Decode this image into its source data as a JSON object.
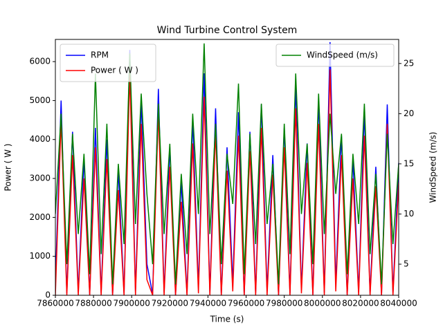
{
  "chart_data": {
    "type": "line",
    "title": "Wind Turbine Control System",
    "xlabel": "Time (s)",
    "ylabel": "Power   ( W )",
    "y2label": "WindSpeed (m/s)",
    "x": [
      7860000,
      7863000,
      7866000,
      7869000,
      7872000,
      7875000,
      7878000,
      7881000,
      7884000,
      7887000,
      7890000,
      7893000,
      7896000,
      7899000,
      7902000,
      7905000,
      7908000,
      7911000,
      7914000,
      7917000,
      7920000,
      7923000,
      7926000,
      7929000,
      7932000,
      7935000,
      7938000,
      7941000,
      7944000,
      7947000,
      7950000,
      7953000,
      7956000,
      7959000,
      7962000,
      7965000,
      7968000,
      7971000,
      7974000,
      7977000,
      7980000,
      7983000,
      7986000,
      7989000,
      7992000,
      7995000,
      7998000,
      8001000,
      8004000,
      8007000,
      8010000,
      8013000,
      8016000,
      8019000,
      8022000,
      8025000,
      8028000,
      8031000,
      8034000,
      8037000,
      8040000
    ],
    "series": [
      {
        "name": "RPM",
        "color": "#0000ff",
        "values": [
          300,
          5000,
          50,
          4200,
          80,
          3500,
          20,
          4300,
          60,
          4000,
          10,
          3200,
          40,
          6300,
          90,
          5000,
          800,
          30,
          5300,
          70,
          3800,
          10,
          2900,
          40,
          4500,
          200,
          5700,
          60,
          4800,
          20,
          3800,
          300,
          4700,
          10,
          4200,
          60,
          4900,
          100,
          3600,
          10,
          4300,
          50,
          5400,
          150,
          3900,
          30,
          5000,
          70,
          6500,
          300,
          4100,
          20,
          3500,
          80,
          4700,
          40,
          3300,
          10,
          4900,
          60,
          3400
        ]
      },
      {
        "name": "Power   ( W )",
        "color": "#ff0000",
        "values": [
          0,
          4500,
          0,
          3600,
          0,
          3000,
          0,
          3800,
          0,
          3500,
          0,
          2700,
          0,
          5700,
          0,
          4400,
          400,
          0,
          4700,
          0,
          3300,
          0,
          2400,
          0,
          3900,
          50,
          5100,
          0,
          4200,
          0,
          3200,
          100,
          4100,
          0,
          3700,
          0,
          4300,
          0,
          3100,
          0,
          3800,
          0,
          4800,
          50,
          3400,
          0,
          4400,
          0,
          5800,
          100,
          3600,
          0,
          3000,
          0,
          4100,
          0,
          2800,
          0,
          4400,
          0,
          2900
        ]
      },
      {
        "name": "WindSpeed (m/s)",
        "color": "#008000",
        "axis": "y2",
        "values": [
          10,
          20,
          5,
          18,
          8,
          16,
          4,
          24,
          6,
          19,
          3,
          15,
          7,
          26,
          9,
          22,
          12,
          5,
          21,
          8,
          17,
          3,
          14,
          6,
          20,
          10,
          27,
          8,
          19,
          5,
          16,
          11,
          23,
          4,
          18,
          7,
          21,
          9,
          15,
          3,
          19,
          6,
          24,
          10,
          17,
          5,
          22,
          8,
          20,
          12,
          18,
          4,
          16,
          9,
          21,
          6,
          14,
          3,
          18,
          7,
          15
        ]
      }
    ],
    "xlim": [
      7860000,
      8040000
    ],
    "xticks": [
      7860000,
      7880000,
      7900000,
      7920000,
      7940000,
      7960000,
      7980000,
      8000000,
      8020000,
      8040000
    ],
    "ylim": [
      0,
      6570
    ],
    "yticks": [
      0,
      1000,
      2000,
      3000,
      4000,
      5000,
      6000
    ],
    "y2lim": [
      1.9,
      27.4
    ],
    "y2ticks": [
      5,
      10,
      15,
      20,
      25
    ],
    "legend_loc": "upper left",
    "legend2_loc": "upper right"
  }
}
